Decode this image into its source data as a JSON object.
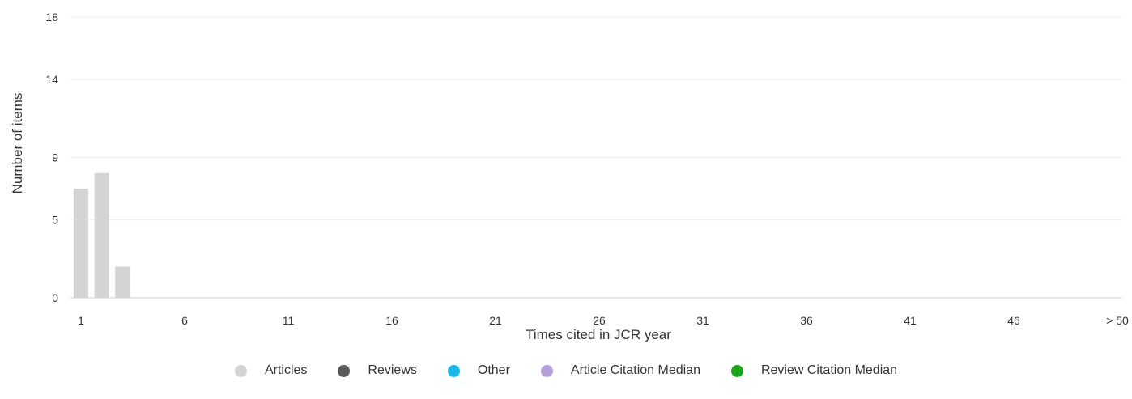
{
  "chart_data": {
    "type": "bar",
    "categories": [
      "1",
      "2",
      "3"
    ],
    "series": [
      {
        "name": "Articles",
        "values": [
          7.0,
          8.0,
          2.0
        ]
      }
    ],
    "xlabel": "Times cited in JCR year",
    "ylabel": "Number of items",
    "x_tick_labels": [
      "1",
      "6",
      "11",
      "16",
      "21",
      "26",
      "31",
      "36",
      "41",
      "46",
      "> 50"
    ],
    "y_tick_labels": [
      "0",
      "5",
      "9",
      "14",
      "18"
    ],
    "ylim": [
      0,
      18
    ],
    "grid": true,
    "legend_position": "bottom",
    "legend": [
      {
        "label": "Articles",
        "color": "#d4d4d4"
      },
      {
        "label": "Reviews",
        "color": "#595959"
      },
      {
        "label": "Other",
        "color": "#1ab7ea"
      },
      {
        "label": "Article Citation Median",
        "color": "#b39ddb"
      },
      {
        "label": "Review Citation Median",
        "color": "#1aa51a"
      }
    ],
    "bar_color": "#d4d4d4"
  }
}
